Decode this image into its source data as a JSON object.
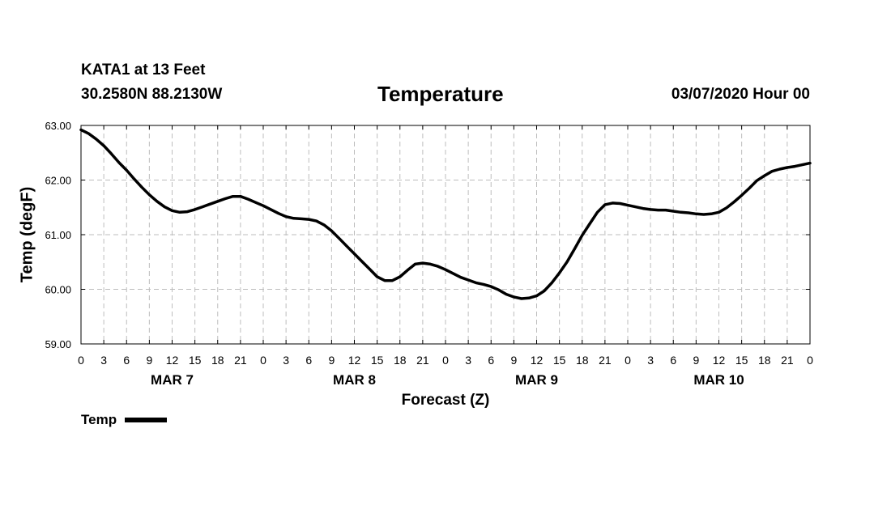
{
  "header": {
    "station": "KATA1 at 13 Feet",
    "location": "30.2580N 88.2130W",
    "title": "Temperature",
    "datetime": "03/07/2020 Hour 00"
  },
  "legend": {
    "label": "Temp"
  },
  "chart_data": {
    "type": "line",
    "title": "Temperature",
    "xlabel": "Forecast (Z)",
    "ylabel": "Temp (degF)",
    "ylim": [
      59.0,
      63.0
    ],
    "y_ticks": [
      "59.00",
      "60.00",
      "61.00",
      "62.00",
      "63.00"
    ],
    "x_range_hours": [
      0,
      96
    ],
    "x_tick_labels": [
      "0",
      "3",
      "6",
      "9",
      "12",
      "15",
      "18",
      "21",
      "0",
      "3",
      "6",
      "9",
      "12",
      "15",
      "18",
      "21",
      "0",
      "3",
      "6",
      "9",
      "12",
      "15",
      "18",
      "21",
      "0",
      "3",
      "6",
      "9",
      "12",
      "15",
      "18",
      "21",
      "0"
    ],
    "day_labels": [
      {
        "label": "MAR 7",
        "hour": 12
      },
      {
        "label": "MAR 8",
        "hour": 36
      },
      {
        "label": "MAR 9",
        "hour": 60
      },
      {
        "label": "MAR 10",
        "hour": 84
      }
    ],
    "grid": true,
    "legend_position": "bottom-left",
    "series": [
      {
        "name": "Temp",
        "color": "#000000",
        "x": [
          0,
          1,
          2,
          3,
          4,
          5,
          6,
          7,
          8,
          9,
          10,
          11,
          12,
          13,
          14,
          15,
          16,
          17,
          18,
          19,
          20,
          21,
          22,
          23,
          24,
          25,
          26,
          27,
          28,
          29,
          30,
          31,
          32,
          33,
          34,
          35,
          36,
          37,
          38,
          39,
          40,
          41,
          42,
          43,
          44,
          45,
          46,
          47,
          48,
          49,
          50,
          51,
          52,
          53,
          54,
          55,
          56,
          57,
          58,
          59,
          60,
          61,
          62,
          63,
          64,
          65,
          66,
          67,
          68,
          69,
          70,
          71,
          72,
          73,
          74,
          75,
          76,
          77,
          78,
          79,
          80,
          81,
          82,
          83,
          84,
          85,
          86,
          87,
          88,
          89,
          90,
          91,
          92,
          93,
          94,
          95,
          96
        ],
        "values": [
          62.92,
          62.85,
          62.75,
          62.63,
          62.48,
          62.32,
          62.18,
          62.02,
          61.87,
          61.73,
          61.61,
          61.51,
          61.44,
          61.41,
          61.42,
          61.46,
          61.51,
          61.56,
          61.61,
          61.66,
          61.7,
          61.7,
          61.65,
          61.59,
          61.53,
          61.46,
          61.39,
          61.33,
          61.3,
          61.29,
          61.28,
          61.25,
          61.18,
          61.07,
          60.93,
          60.79,
          60.65,
          60.51,
          60.37,
          60.23,
          60.16,
          60.16,
          60.23,
          60.35,
          60.46,
          60.48,
          60.46,
          60.42,
          60.36,
          60.29,
          60.22,
          60.17,
          60.12,
          60.09,
          60.05,
          59.99,
          59.91,
          59.86,
          59.83,
          59.84,
          59.88,
          59.97,
          60.12,
          60.3,
          60.5,
          60.74,
          60.99,
          61.2,
          61.41,
          61.55,
          61.58,
          61.57,
          61.54,
          61.51,
          61.48,
          61.46,
          61.45,
          61.45,
          61.43,
          61.41,
          61.4,
          61.38,
          61.37,
          61.38,
          61.41,
          61.49,
          61.6,
          61.72,
          61.85,
          61.99,
          62.08,
          62.16,
          62.2,
          62.23,
          62.25,
          62.28,
          62.31
        ]
      }
    ]
  }
}
